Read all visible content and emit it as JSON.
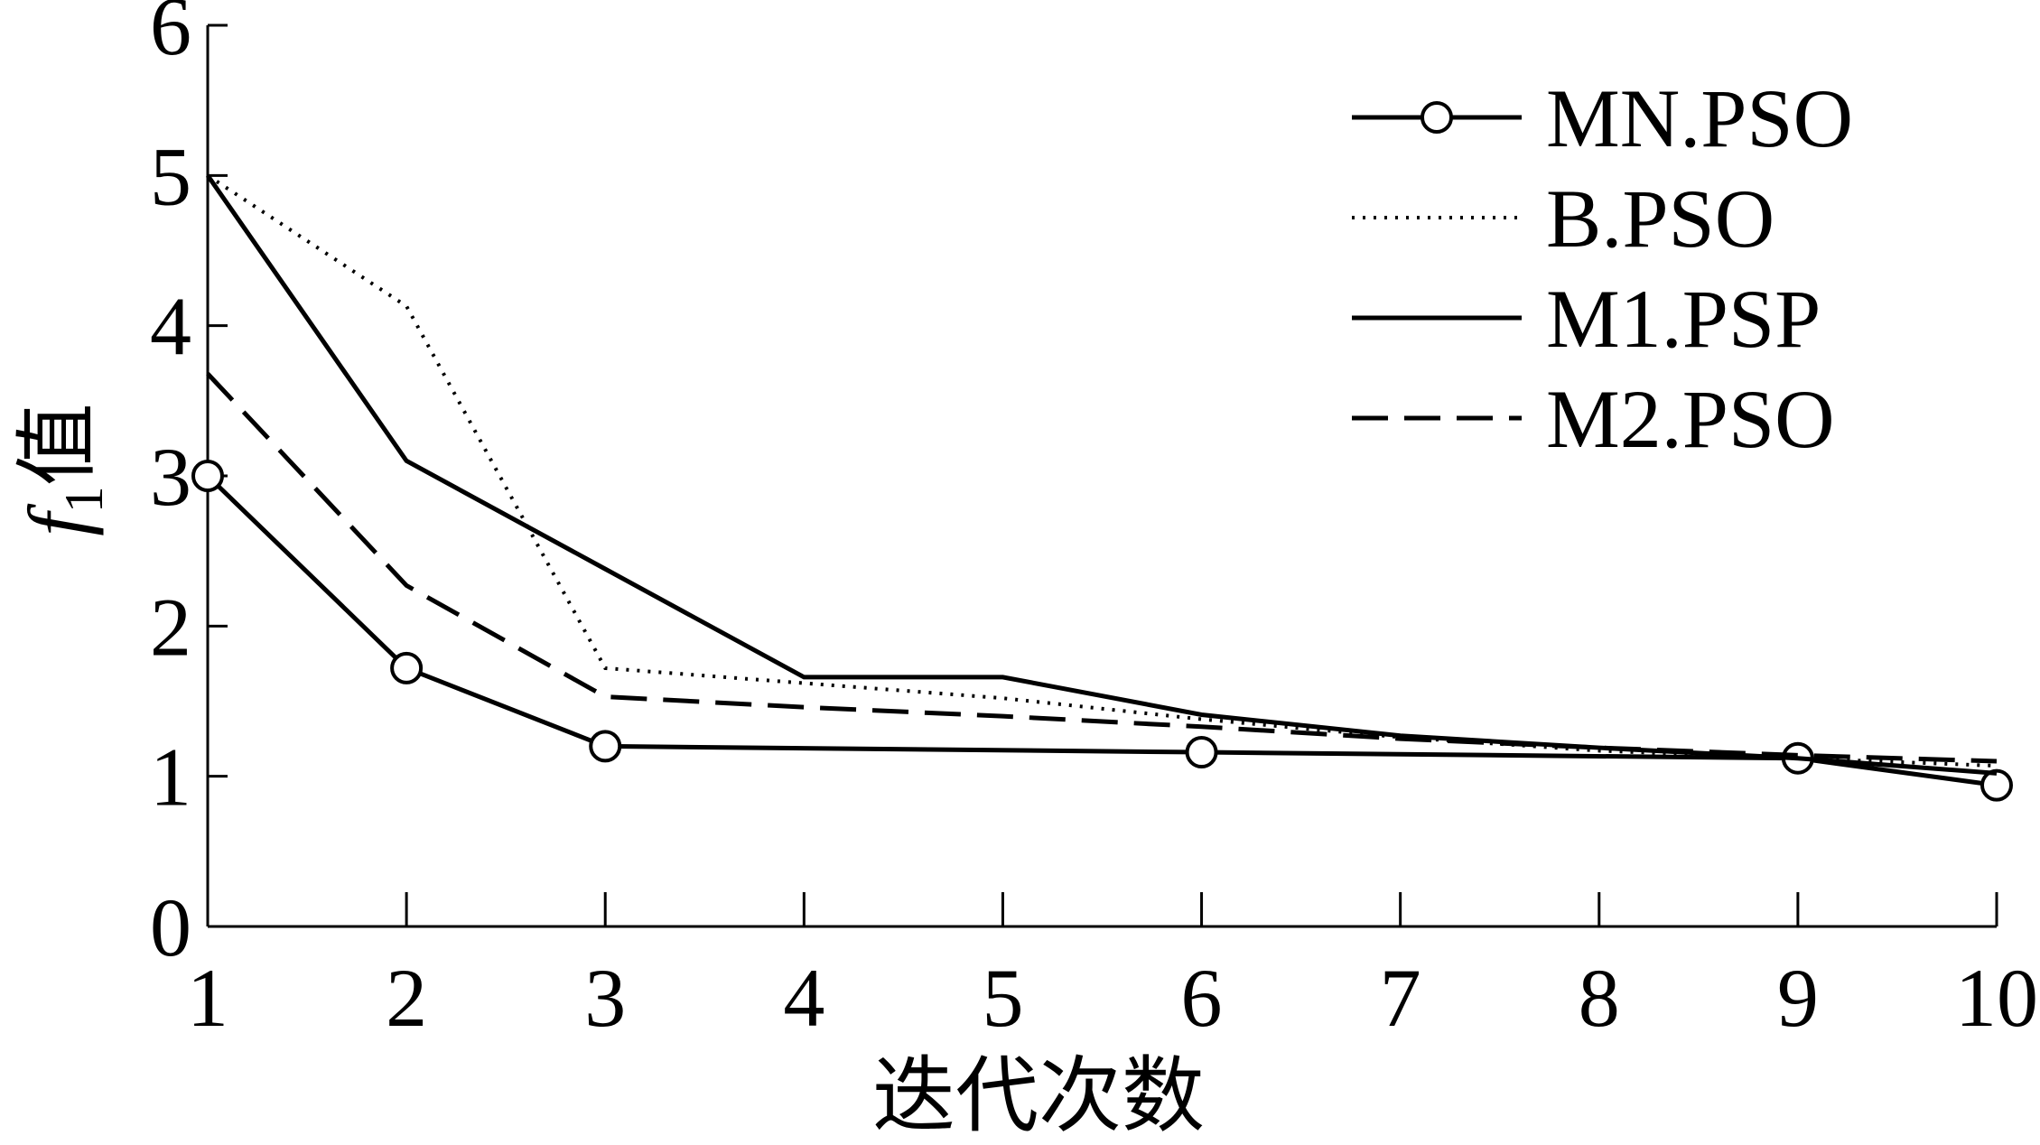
{
  "chart_data": {
    "type": "line",
    "x_label": "迭代次数",
    "y_label": {
      "symbol": "f",
      "subscript": "1",
      "text": "值"
    },
    "xlim": [
      1,
      10
    ],
    "xticks": [
      1,
      2,
      3,
      4,
      5,
      6,
      7,
      8,
      9,
      10
    ],
    "ylim": [
      0,
      6
    ],
    "yticks": [
      0,
      1,
      2,
      3,
      4,
      5,
      6
    ],
    "legend": "upper right",
    "series": [
      {
        "name": "MN.PSO",
        "color": "#000000",
        "style": "solid",
        "marker": "circle",
        "x": [
          1,
          2,
          3,
          6,
          9,
          10
        ],
        "values": [
          3.0,
          1.72,
          1.2,
          1.16,
          1.12,
          0.94
        ]
      },
      {
        "name": "B.PSO",
        "color": "#000000",
        "style": "dotted",
        "x": [
          1,
          2,
          3,
          4,
          5,
          6,
          7,
          8,
          9,
          10
        ],
        "values": [
          5.0,
          4.13,
          1.72,
          1.62,
          1.52,
          1.38,
          1.26,
          1.17,
          1.12,
          1.07
        ]
      },
      {
        "name": "M1.PSP",
        "color": "#000000",
        "style": "solid",
        "x": [
          1,
          2,
          3,
          4,
          5,
          6,
          7,
          8,
          9,
          10
        ],
        "values": [
          5.0,
          3.1,
          2.38,
          1.66,
          1.66,
          1.41,
          1.27,
          1.19,
          1.12,
          1.02
        ]
      },
      {
        "name": "M2.PSO",
        "color": "#000000",
        "style": "dashed",
        "x": [
          1,
          2,
          3,
          4,
          5,
          6,
          7,
          8,
          9,
          10
        ],
        "values": [
          3.68,
          2.27,
          1.53,
          1.46,
          1.4,
          1.33,
          1.25,
          1.19,
          1.14,
          1.1
        ]
      }
    ]
  }
}
